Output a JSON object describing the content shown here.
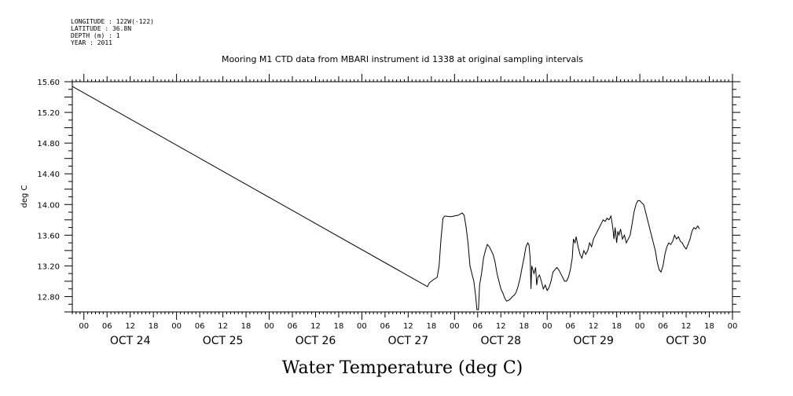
{
  "header_info": {
    "longitude": "LONGITUDE : 122W(-122)",
    "latitude": "LATITUDE : 36.8N",
    "depth": "DEPTH (m) : 1",
    "year": "YEAR : 2011"
  },
  "chart_data": {
    "type": "line",
    "title": "Mooring M1 CTD data from MBARI instrument id 1338 at original sampling intervals",
    "xlabel": "Water Temperature (deg C)",
    "ylabel": "deg C",
    "ylim": [
      12.6,
      15.6
    ],
    "xlim_hours": [
      -3,
      168
    ],
    "yticks": [
      "15.60",
      "15.20",
      "14.80",
      "14.40",
      "14.00",
      "13.60",
      "13.20",
      "12.80"
    ],
    "hour_tick_labels": [
      "00",
      "06",
      "12",
      "18"
    ],
    "day_labels": [
      "OCT 24",
      "OCT 25",
      "OCT 26",
      "OCT 27",
      "OCT 28",
      "OCT 29",
      "OCT 30"
    ],
    "grid": false,
    "series": [
      {
        "points": [
          [
            -3,
            15.54
          ],
          [
            89,
            12.93
          ],
          [
            89.5,
            12.98
          ],
          [
            90.5,
            13.02
          ],
          [
            91.5,
            13.05
          ],
          [
            92,
            13.2
          ],
          [
            92.5,
            13.55
          ],
          [
            93,
            13.82
          ],
          [
            93.5,
            13.85
          ],
          [
            95,
            13.84
          ],
          [
            97,
            13.86
          ],
          [
            98,
            13.89
          ],
          [
            98.5,
            13.86
          ],
          [
            99,
            13.7
          ],
          [
            99.5,
            13.5
          ],
          [
            100,
            13.2
          ],
          [
            100.5,
            13.1
          ],
          [
            101,
            13.0
          ],
          [
            101.5,
            12.8
          ],
          [
            101.8,
            12.63
          ],
          [
            102.2,
            12.63
          ],
          [
            102.5,
            12.95
          ],
          [
            103,
            13.1
          ],
          [
            103.5,
            13.3
          ],
          [
            104,
            13.4
          ],
          [
            104.5,
            13.48
          ],
          [
            105,
            13.45
          ],
          [
            105.5,
            13.4
          ],
          [
            106,
            13.35
          ],
          [
            106.5,
            13.25
          ],
          [
            107,
            13.1
          ],
          [
            107.5,
            13.0
          ],
          [
            108,
            12.9
          ],
          [
            108.5,
            12.85
          ],
          [
            109,
            12.78
          ],
          [
            109.5,
            12.74
          ],
          [
            110,
            12.75
          ],
          [
            110.5,
            12.77
          ],
          [
            111,
            12.8
          ],
          [
            111.5,
            12.82
          ],
          [
            112,
            12.86
          ],
          [
            112.5,
            12.94
          ],
          [
            113,
            13.04
          ],
          [
            113.5,
            13.18
          ],
          [
            114,
            13.3
          ],
          [
            114.5,
            13.45
          ],
          [
            115,
            13.5
          ],
          [
            115.3,
            13.47
          ],
          [
            115.6,
            13.3
          ],
          [
            115.8,
            12.9
          ],
          [
            116,
            13.2
          ],
          [
            116.3,
            13.15
          ],
          [
            116.6,
            13.1
          ],
          [
            117,
            13.18
          ],
          [
            117.3,
            12.95
          ],
          [
            117.6,
            13.05
          ],
          [
            118,
            13.08
          ],
          [
            118.5,
            13.0
          ],
          [
            119,
            12.9
          ],
          [
            119.5,
            12.95
          ],
          [
            120,
            12.88
          ],
          [
            120.5,
            12.92
          ],
          [
            121,
            13.0
          ],
          [
            121.5,
            13.12
          ],
          [
            122,
            13.15
          ],
          [
            122.5,
            13.18
          ],
          [
            123,
            13.15
          ],
          [
            123.5,
            13.1
          ],
          [
            124,
            13.05
          ],
          [
            124.5,
            13.0
          ],
          [
            125,
            13.0
          ],
          [
            125.5,
            13.05
          ],
          [
            126,
            13.15
          ],
          [
            126.5,
            13.3
          ],
          [
            126.8,
            13.55
          ],
          [
            127.2,
            13.5
          ],
          [
            127.5,
            13.58
          ],
          [
            128,
            13.45
          ],
          [
            128.5,
            13.35
          ],
          [
            129,
            13.3
          ],
          [
            129.5,
            13.4
          ],
          [
            130,
            13.35
          ],
          [
            130.5,
            13.4
          ],
          [
            131,
            13.5
          ],
          [
            131.5,
            13.45
          ],
          [
            132,
            13.55
          ],
          [
            132.5,
            13.6
          ],
          [
            133,
            13.65
          ],
          [
            133.5,
            13.7
          ],
          [
            134,
            13.75
          ],
          [
            134.5,
            13.8
          ],
          [
            135,
            13.78
          ],
          [
            135.5,
            13.82
          ],
          [
            136,
            13.8
          ],
          [
            136.5,
            13.85
          ],
          [
            137,
            13.7
          ],
          [
            137.3,
            13.55
          ],
          [
            137.6,
            13.7
          ],
          [
            138,
            13.5
          ],
          [
            138.3,
            13.65
          ],
          [
            138.6,
            13.6
          ],
          [
            139,
            13.68
          ],
          [
            139.5,
            13.55
          ],
          [
            140,
            13.6
          ],
          [
            140.5,
            13.5
          ],
          [
            141,
            13.55
          ],
          [
            141.5,
            13.6
          ],
          [
            142,
            13.75
          ],
          [
            142.5,
            13.9
          ],
          [
            143,
            14.0
          ],
          [
            143.5,
            14.05
          ],
          [
            144,
            14.05
          ],
          [
            144.5,
            14.02
          ],
          [
            145,
            14.0
          ],
          [
            145.5,
            13.9
          ],
          [
            146,
            13.8
          ],
          [
            146.5,
            13.7
          ],
          [
            147,
            13.6
          ],
          [
            147.5,
            13.5
          ],
          [
            148,
            13.4
          ],
          [
            148.5,
            13.25
          ],
          [
            149,
            13.15
          ],
          [
            149.5,
            13.12
          ],
          [
            150,
            13.2
          ],
          [
            150.5,
            13.35
          ],
          [
            151,
            13.45
          ],
          [
            151.5,
            13.5
          ],
          [
            152,
            13.48
          ],
          [
            152.5,
            13.52
          ],
          [
            153,
            13.6
          ],
          [
            153.5,
            13.55
          ],
          [
            154,
            13.58
          ],
          [
            154.5,
            13.52
          ],
          [
            155,
            13.5
          ],
          [
            155.5,
            13.45
          ],
          [
            156,
            13.42
          ],
          [
            156.5,
            13.48
          ],
          [
            157,
            13.55
          ],
          [
            157.5,
            13.65
          ],
          [
            158,
            13.7
          ],
          [
            158.5,
            13.68
          ],
          [
            159,
            13.72
          ],
          [
            159.5,
            13.68
          ]
        ]
      }
    ]
  }
}
